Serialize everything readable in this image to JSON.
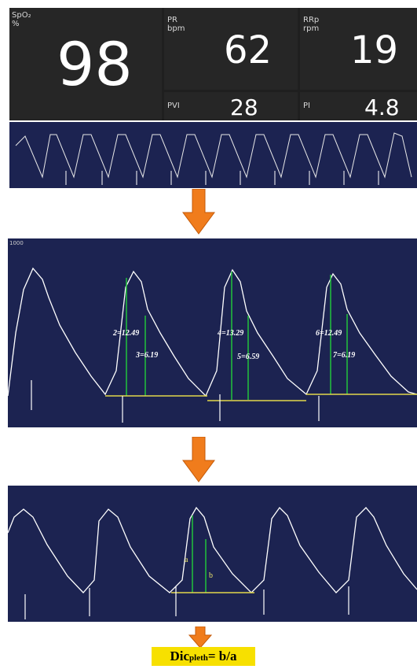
{
  "monitor": {
    "spo2": {
      "label": "SpO₂",
      "unit": "%",
      "value": "98"
    },
    "pr": {
      "label": "PR",
      "unit": "bpm",
      "value": "62"
    },
    "rrp": {
      "label": "RRp",
      "unit": "rpm",
      "value": "19"
    },
    "pvi": {
      "label": "PVI",
      "value": "28"
    },
    "pi": {
      "label": "PI",
      "value": "4.8"
    }
  },
  "analysis": {
    "corner_label": "1000",
    "measurements": [
      "2=12.49",
      "3=6.19",
      "4=13.29",
      "5=6.59",
      "6=12.49",
      "7=6.19"
    ]
  },
  "dicrotic": {
    "label_a": "a",
    "label_b": "b"
  },
  "formula": {
    "main": "Dic",
    "subscript": "pleth",
    "rest": "= b/a"
  },
  "colors": {
    "monitor_bg": "#1f1f1f",
    "strip_bg": "#1c2351",
    "arrow": "#f07c1c",
    "marker_green": "#22c33c",
    "baseline_yellow": "#e2d84a",
    "formula_bg": "#f7e000"
  }
}
